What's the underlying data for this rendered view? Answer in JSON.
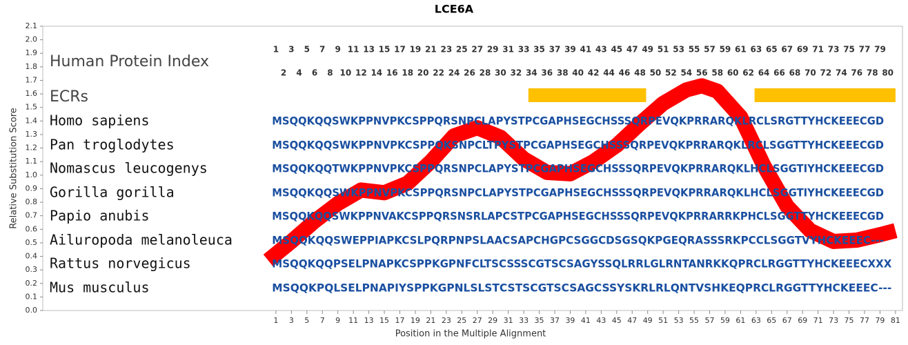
{
  "chart_data": {
    "type": "line",
    "title": "LCE6A",
    "x_label": "Position in the Multiple Alignment",
    "y_label": "Relative Substitution Score",
    "index_label": "Human Protein Index",
    "ecr_label": "ECRs",
    "index_top": [
      1,
      3,
      5,
      7,
      9,
      11,
      13,
      15,
      17,
      19,
      21,
      23,
      25,
      27,
      29,
      31,
      33,
      35,
      37,
      39,
      41,
      43,
      45,
      47,
      49,
      51,
      53,
      55,
      57,
      59,
      61,
      63,
      65,
      67,
      69,
      71,
      73,
      75,
      77,
      79
    ],
    "index_bottom": [
      2,
      4,
      6,
      8,
      10,
      12,
      14,
      16,
      18,
      20,
      22,
      24,
      26,
      28,
      30,
      32,
      34,
      36,
      38,
      40,
      42,
      44,
      46,
      48,
      50,
      52,
      54,
      56,
      58,
      60,
      62,
      64,
      66,
      68,
      70,
      72,
      74,
      76,
      78,
      80
    ],
    "ecrs": [
      {
        "start": 33.6,
        "end": 48.8,
        "color": "#ffc000"
      },
      {
        "start": 62.8,
        "end": 81,
        "color": "#ffc000"
      }
    ],
    "species": [
      {
        "name": "Homo sapiens",
        "sequence": "MSQQKQQSWKPPNVPKCSPPQRSNPCLAPYSTPCGAPHSEGCHSSSQRPEVQKPRRARQKLRCLSRGTTYHCKEEECGD"
      },
      {
        "name": "Pan troglodytes",
        "sequence": "MSQQKQQSWKPPNVPKCSPPQKSNPCLTPYSTPCGAPHSEGCHSSSQRPEVQKPRRARQKLRCLSGGTTYHCKEEECGD"
      },
      {
        "name": "Nomascus leucogenys",
        "sequence": "MSQQKQQTWKPPNVPKCSPPQRSNPCLAPYSTPCGAPHSEGCHSSSQRPEVQKPRRARQKLHCLSGGTIYHCKEEECGD"
      },
      {
        "name": "Gorilla gorilla",
        "sequence": "MSQQKQQSWKPPNVPKCSPPQRSNPCLAPYSTPCGAPHSEGCHSSSQRPEVQKPRRARQKLHCLSGGTIYHCKEEECGD"
      },
      {
        "name": "Papio anubis",
        "sequence": "MSQQKQQSWKPPNVAKCSPPQRSNSRLAPCSTPCGAPHSEGCHSSSQRPEVQKPRRARRKPHCLSGGTTYHCKEEECGD"
      },
      {
        "name": "Ailuropoda melanoleuca",
        "sequence": "MSQQKQQSWEPPIAPKCSLPQRPNPSLAACSAPCHGPCSGGCDSGSQKPGEQRASSSRKPCCLSGGTVYHCKEEEC---"
      },
      {
        "name": "Rattus norvegicus",
        "sequence": "MSQQKQQPSELPNAPKCSPPKGPNFCLTSCSSSCGTSCSAGYSSQLRRLGLRNTANRKKQPRCLRGGTTYHCKEEECXXX"
      },
      {
        "name": "Mus musculus",
        "sequence": "MSQQKPQLSELPNAPIYSPPKGPNLSLSTCSTSCGTSCSAGCSSYSKRLRLQNTVSHKEQPRCLRGGTTYHCKEEEC---"
      }
    ],
    "x": [
      0,
      3,
      6,
      9,
      12,
      15,
      18,
      21,
      24,
      27,
      30,
      33,
      36,
      39,
      42,
      45,
      48,
      51,
      54,
      56,
      58,
      61,
      64,
      67,
      70,
      73,
      76,
      79,
      81
    ],
    "series": [
      {
        "color": "#ff0000",
        "values": [
          0.37,
          0.51,
          0.66,
          0.79,
          0.89,
          0.87,
          0.94,
          1.1,
          1.29,
          1.35,
          1.28,
          1.12,
          1.02,
          1.01,
          1.1,
          1.22,
          1.38,
          1.53,
          1.63,
          1.66,
          1.62,
          1.43,
          1.07,
          0.77,
          0.59,
          0.51,
          0.52,
          0.56,
          0.59
        ]
      }
    ],
    "xlim": [
      -29.1,
      81.9
    ],
    "ylim": [
      0,
      2.1
    ],
    "xticks": [
      1,
      3,
      5,
      7,
      9,
      11,
      13,
      15,
      17,
      19,
      21,
      23,
      25,
      27,
      29,
      31,
      33,
      35,
      37,
      39,
      41,
      43,
      45,
      47,
      49,
      51,
      53,
      55,
      57,
      59,
      61,
      63,
      65,
      67,
      69,
      71,
      73,
      75,
      77,
      79,
      81
    ],
    "yticks": [
      {
        "value": 0,
        "label": "0.0"
      },
      0.1,
      0.2,
      0.3,
      0.4,
      0.5,
      0.6,
      0.7,
      0.8,
      0.9,
      {
        "value": 1,
        "label": "1.0"
      },
      1.1,
      1.2,
      1.3,
      1.4,
      1.5,
      1.6,
      1.7,
      1.8,
      1.9,
      {
        "value": 2,
        "label": "2.0"
      },
      2.1
    ]
  }
}
